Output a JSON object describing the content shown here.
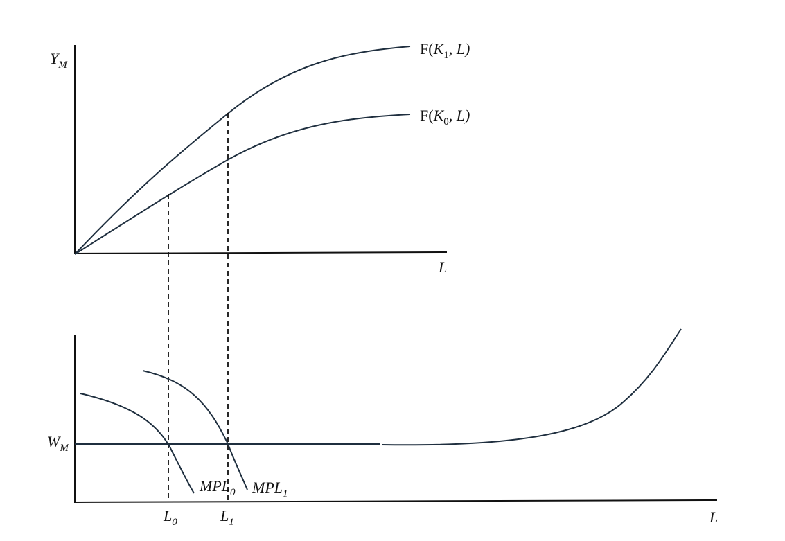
{
  "top_panel": {
    "y_axis_label": {
      "base": "Y",
      "sub": "M"
    },
    "x_axis_label": "L",
    "curves": [
      {
        "prefix": "F(",
        "base": "K",
        "sub": "1",
        "suffix": ", L)"
      },
      {
        "prefix": "F(",
        "base": "K",
        "sub": "0",
        "suffix": ", L)"
      }
    ]
  },
  "bottom_panel": {
    "y_axis_label": {
      "base": "W",
      "sub": "M"
    },
    "x_axis_label": "L",
    "curves": [
      {
        "base": "MPL",
        "sub": "0"
      },
      {
        "base": "MPL",
        "sub": "1"
      }
    ],
    "markers": [
      {
        "base": "L",
        "sub": "0"
      },
      {
        "base": "L",
        "sub": "1"
      }
    ]
  }
}
